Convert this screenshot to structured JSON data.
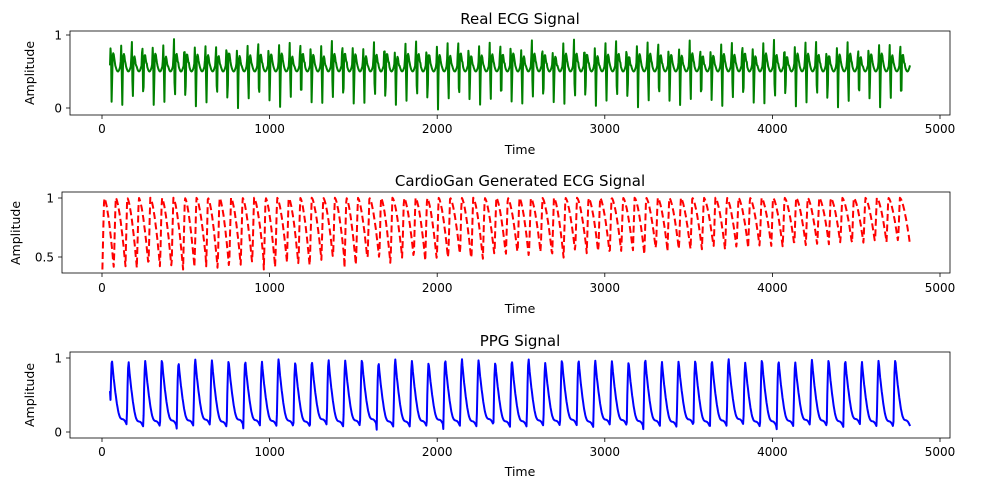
{
  "chart_data": [
    {
      "type": "line",
      "title": "Real ECG Signal",
      "xlabel": "Time",
      "ylabel": "Amplitude",
      "xlim": [
        -250,
        5250
      ],
      "ylim": [
        -0.05,
        1.05
      ],
      "xticks": [
        0,
        1000,
        2000,
        3000,
        4000,
        5000
      ],
      "yticks": [
        0,
        1
      ],
      "grid": false,
      "series": [
        {
          "color": "#008000",
          "line_style": "solid",
          "x_start": 0,
          "x_end": 5000,
          "cycles": 76,
          "baseline": 0.6,
          "peak": 0.95,
          "trough": 0.02
        }
      ]
    },
    {
      "type": "line",
      "title": "CardioGan Generated ECG Signal",
      "xlabel": "Time",
      "ylabel": "Amplitude",
      "xlim": [
        -250,
        5250
      ],
      "ylim": [
        0.33,
        1.03
      ],
      "xticks": [
        0,
        1000,
        2000,
        3000,
        4000,
        5000
      ],
      "yticks": [
        0.5,
        1.0
      ],
      "grid": false,
      "series": [
        {
          "color": "#ff0000",
          "line_style": "dashed",
          "x_start": 0,
          "x_end": 5000,
          "cycles": 70,
          "peak": 0.98,
          "trough_start": 0.4,
          "trough_end": 0.6
        }
      ]
    },
    {
      "type": "line",
      "title": "PPG Signal",
      "xlabel": "Time",
      "ylabel": "Amplitude",
      "xlim": [
        -250,
        5250
      ],
      "ylim": [
        -0.05,
        1.05
      ],
      "xticks": [
        0,
        1000,
        2000,
        3000,
        4000,
        5000
      ],
      "yticks": [
        0,
        1
      ],
      "grid": false,
      "series": [
        {
          "color": "#0000ff",
          "line_style": "solid",
          "x_start": 0,
          "x_end": 5000,
          "cycles": 48,
          "peak": 0.96,
          "trough": 0.05
        }
      ]
    }
  ]
}
